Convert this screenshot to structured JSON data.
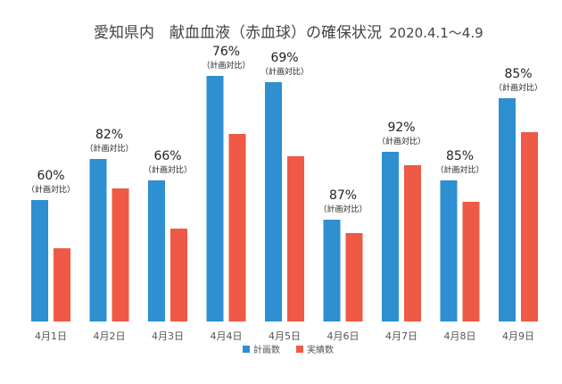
{
  "chart_data": {
    "type": "bar",
    "title": "愛知県内　献血血液（赤血球）の確保状況",
    "date_range": "2020.4.1～4.9",
    "categories": [
      "4月1日",
      "4月2日",
      "4月3日",
      "4月4日",
      "4月5日",
      "4月6日",
      "4月7日",
      "4月8日",
      "4月9日"
    ],
    "series": [
      {
        "name": "計画数",
        "color": "#2e8fd1",
        "values": [
          136,
          182,
          158,
          275,
          268,
          114,
          190,
          158,
          250
        ]
      },
      {
        "name": "実績数",
        "color": "#ee5a45",
        "values": [
          82,
          149,
          104,
          210,
          185,
          99,
          175,
          134,
          212
        ]
      }
    ],
    "annotations": [
      {
        "text": "60%",
        "sub": "（計画対比）"
      },
      {
        "text": "82%",
        "sub": "（計画対比）"
      },
      {
        "text": "66%",
        "sub": "（計画対比）"
      },
      {
        "text": "76%",
        "sub": "（計画対比）"
      },
      {
        "text": "69%",
        "sub": "（計画対比）"
      },
      {
        "text": "87%",
        "sub": "（計画対比）"
      },
      {
        "text": "92%",
        "sub": "（計画対比）"
      },
      {
        "text": "85%",
        "sub": "（計画対比）"
      },
      {
        "text": "85%",
        "sub": "（計画対比）"
      }
    ],
    "xlabel": "",
    "ylabel": "",
    "grid": false,
    "legend_position": "bottom"
  }
}
